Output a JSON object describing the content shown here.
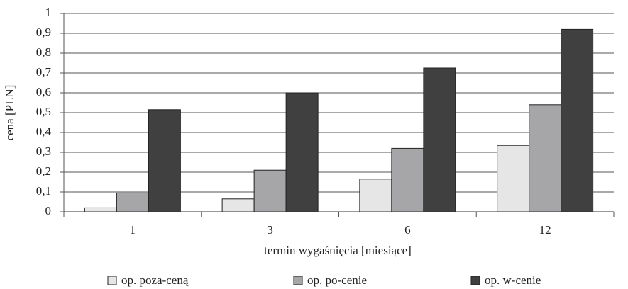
{
  "chart_data": {
    "type": "bar",
    "x_label": "termin wygaśnięcia [miesiące]",
    "y_label": "cena [PLN]",
    "categories": [
      "1",
      "3",
      "6",
      "12"
    ],
    "series": [
      {
        "name": "op. poza-ceną",
        "color": "#e6e6e6",
        "values": [
          0.02,
          0.065,
          0.165,
          0.335
        ]
      },
      {
        "name": "op. po-cenie",
        "color": "#a6a6a8",
        "values": [
          0.095,
          0.21,
          0.32,
          0.54
        ]
      },
      {
        "name": "op. w-cenie",
        "color": "#404040",
        "values": [
          0.515,
          0.6,
          0.725,
          0.92
        ]
      }
    ],
    "ylim": [
      0,
      1
    ],
    "yticks": [
      0,
      {
        "value": 0.1,
        "label": "0,1"
      },
      {
        "value": 0.2,
        "label": "0,2"
      },
      {
        "value": 0.3,
        "label": "0,3"
      },
      {
        "value": 0.4,
        "label": "0,4"
      },
      {
        "value": 0.5,
        "label": "0,5"
      },
      {
        "value": 0.6,
        "label": "0,6"
      },
      {
        "value": 0.7,
        "label": "0,7"
      },
      {
        "value": 0.8,
        "label": "0,8"
      },
      {
        "value": 0.9,
        "label": "0,9"
      },
      1
    ],
    "grid": true,
    "legend": "bottom"
  }
}
